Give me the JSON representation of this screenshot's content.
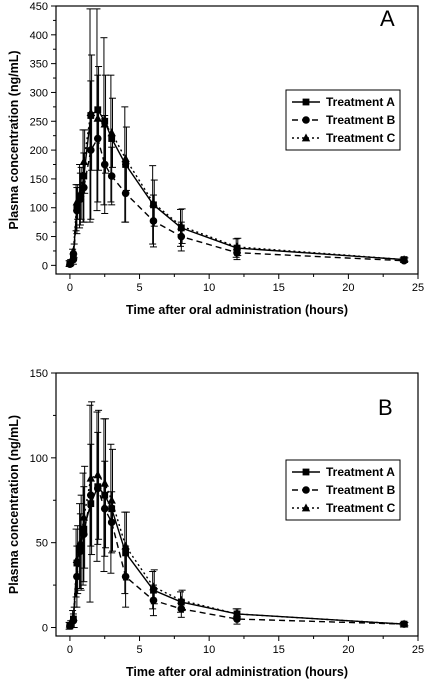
{
  "chart_data": [
    {
      "type": "line",
      "panel_label": "A",
      "xlabel": "Time after oral administration (hours)",
      "ylabel": "Plasma concentration (ng/mL)",
      "xlim": [
        -1,
        25
      ],
      "ylim": [
        -15,
        450
      ],
      "xticks": [
        0,
        5,
        10,
        15,
        20,
        25
      ],
      "yticks": [
        0,
        50,
        100,
        150,
        200,
        250,
        300,
        350,
        400,
        450
      ],
      "grid": false,
      "legend_position": "right",
      "x": [
        0,
        0.25,
        0.5,
        0.75,
        1,
        1.5,
        2,
        2.5,
        3,
        4,
        6,
        8,
        12,
        24
      ],
      "series": [
        {
          "name": "Treatment A",
          "marker": "square",
          "line": "solid",
          "values": [
            3,
            18,
            100,
            120,
            155,
            260,
            270,
            250,
            220,
            175,
            105,
            65,
            30,
            10
          ],
          "errors": [
            5,
            10,
            40,
            55,
            80,
            185,
            175,
            145,
            110,
            100,
            68,
            32,
            16,
            3
          ]
        },
        {
          "name": "Treatment B",
          "marker": "circle",
          "line": "dash",
          "values": [
            2,
            10,
            95,
            115,
            135,
            200,
            220,
            175,
            155,
            125,
            77,
            50,
            22,
            8
          ],
          "errors": [
            3,
            8,
            40,
            45,
            60,
            120,
            110,
            85,
            50,
            50,
            45,
            25,
            12,
            3
          ]
        },
        {
          "name": "Treatment C",
          "marker": "triangle",
          "line": "dot",
          "values": [
            5,
            25,
            110,
            125,
            180,
            265,
            255,
            245,
            230,
            185,
            108,
            68,
            32,
            10
          ],
          "errors": [
            5,
            12,
            30,
            45,
            55,
            100,
            90,
            85,
            60,
            55,
            40,
            30,
            15,
            3
          ]
        }
      ]
    },
    {
      "type": "line",
      "panel_label": "B",
      "xlabel": "Time after oral administration (hours)",
      "ylabel": "Plasma concentration (ng/mL)",
      "xlim": [
        -1,
        25
      ],
      "ylim": [
        -5,
        150
      ],
      "xticks": [
        0,
        5,
        10,
        15,
        20,
        25
      ],
      "yticks": [
        0,
        50,
        100,
        150
      ],
      "grid": false,
      "legend_position": "right",
      "x": [
        0,
        0.25,
        0.5,
        0.75,
        1,
        1.5,
        2,
        2.5,
        3,
        4,
        6,
        8,
        12,
        24
      ],
      "series": [
        {
          "name": "Treatment A",
          "marker": "square",
          "line": "solid",
          "values": [
            1,
            5,
            38,
            48,
            58,
            73,
            83,
            78,
            70,
            44,
            22,
            15,
            8,
            2
          ],
          "errors": [
            2,
            5,
            20,
            25,
            33,
            58,
            44,
            45,
            38,
            24,
            11,
            6,
            3,
            1
          ]
        },
        {
          "name": "Treatment B",
          "marker": "circle",
          "line": "dash",
          "values": [
            1,
            4,
            30,
            45,
            55,
            78,
            82,
            70,
            62,
            30,
            16,
            11,
            5,
            2
          ],
          "errors": [
            1,
            4,
            18,
            22,
            28,
            30,
            33,
            28,
            18,
            18,
            9,
            5,
            3,
            1
          ]
        },
        {
          "name": "Treatment C",
          "marker": "triangle",
          "line": "dot",
          "values": [
            2,
            6,
            40,
            50,
            65,
            88,
            90,
            85,
            75,
            48,
            24,
            16,
            8,
            2
          ],
          "errors": [
            2,
            6,
            20,
            28,
            30,
            45,
            38,
            38,
            30,
            20,
            10,
            6,
            3,
            1
          ]
        }
      ]
    }
  ]
}
